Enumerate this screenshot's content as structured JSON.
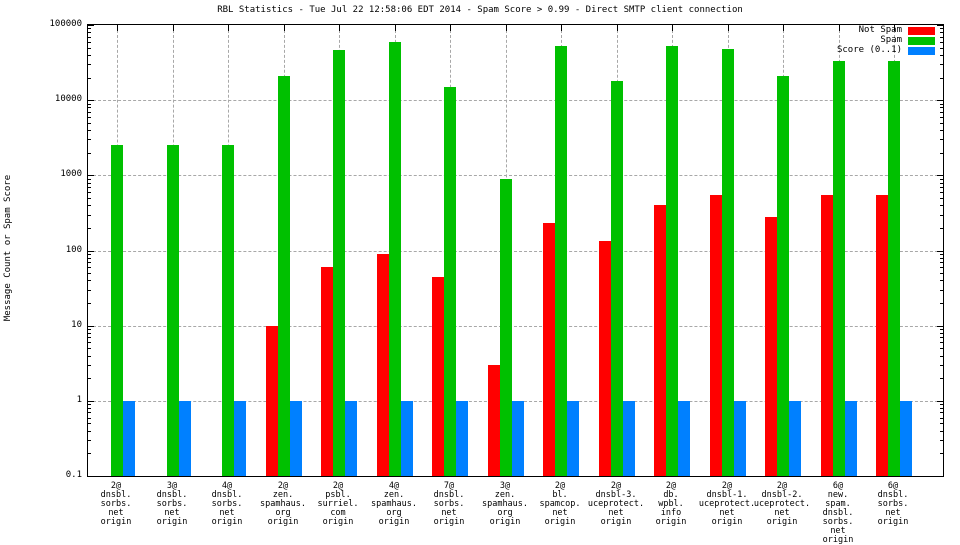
{
  "title": "RBL Statistics - Tue Jul 22 12:58:06 EDT 2014 - Spam Score > 0.99 - Direct SMTP client connection",
  "ylabel": "Message Count or Spam Score",
  "legend": [
    {
      "label": "Not Spam",
      "color": "#ff0000"
    },
    {
      "label": "Spam",
      "color": "#00c000"
    },
    {
      "label": "Score (0..1)",
      "color": "#0080ff"
    }
  ],
  "chart_data": {
    "type": "bar",
    "yscale": "log",
    "ylim": [
      0.1,
      100000
    ],
    "grid": true,
    "grid_color": "#a8a8a8",
    "yticks": {
      "values": [
        0.1,
        1,
        10,
        100,
        1000,
        10000,
        100000
      ],
      "labels": [
        "0.1",
        "1",
        "10",
        "100",
        "1000",
        "10000",
        "100000"
      ]
    },
    "hgrid_values": [
      1,
      10,
      100,
      1000,
      10000
    ],
    "categories": [
      [
        "2@",
        "dnsbl.",
        "sorbs.",
        "net",
        "origin"
      ],
      [
        "3@",
        "dnsbl.",
        "sorbs.",
        "net",
        "origin"
      ],
      [
        "4@",
        "dnsbl.",
        "sorbs.",
        "net",
        "origin"
      ],
      [
        "2@",
        "zen.",
        "spamhaus.",
        "org",
        "origin"
      ],
      [
        "2@",
        "psbl.",
        "surriel.",
        "com",
        "origin"
      ],
      [
        "4@",
        "zen.",
        "spamhaus.",
        "org",
        "origin"
      ],
      [
        "7@",
        "dnsbl.",
        "sorbs.",
        "net",
        "origin"
      ],
      [
        "3@",
        "zen.",
        "spamhaus.",
        "org",
        "origin"
      ],
      [
        "2@",
        "bl.",
        "spamcop.",
        "net",
        "origin"
      ],
      [
        "2@",
        "dnsbl-3.",
        "uceprotect.",
        "net",
        "origin"
      ],
      [
        "2@",
        "db.",
        "wpbl.",
        "info",
        "origin"
      ],
      [
        "2@",
        "dnsbl-1.",
        "uceprotect.",
        "net",
        "origin"
      ],
      [
        "2@",
        "dnsbl-2.",
        "uceprotect.",
        "net",
        "origin"
      ],
      [
        "6@",
        "new.",
        "spam.",
        "dnsbl.",
        "sorbs.",
        "net",
        "origin"
      ],
      [
        "6@",
        "dnsbl.",
        "sorbs.",
        "net",
        "origin"
      ]
    ],
    "series": [
      {
        "name": "Not Spam",
        "color": "#ff0000",
        "values": [
          0,
          0,
          0,
          10,
          60,
          90,
          45,
          3,
          230,
          135,
          400,
          550,
          280,
          540,
          550
        ]
      },
      {
        "name": "Spam",
        "color": "#00c000",
        "values": [
          2500,
          2500,
          2500,
          21000,
          47000,
          59000,
          15000,
          900,
          53000,
          18000,
          53000,
          48000,
          21000,
          33000,
          33000
        ]
      },
      {
        "name": "Score (0..1)",
        "color": "#0080ff",
        "values": [
          1,
          1,
          1,
          1,
          1,
          1,
          1,
          1,
          1,
          1,
          1,
          1,
          1,
          1,
          1
        ]
      }
    ]
  }
}
